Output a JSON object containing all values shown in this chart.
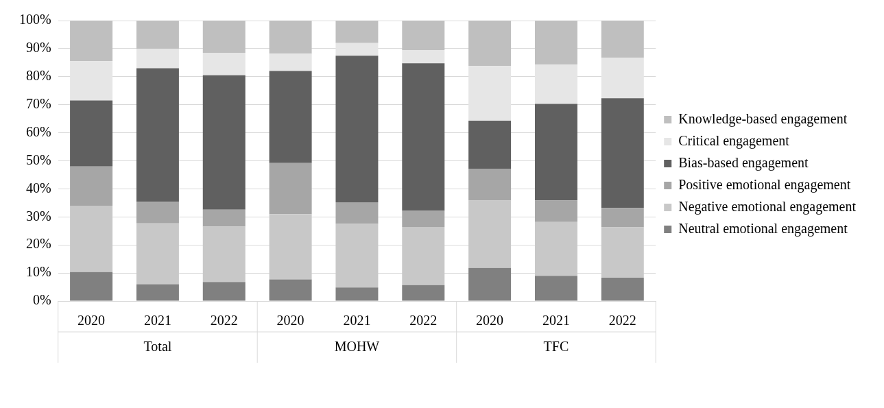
{
  "chart_data": {
    "type": "bar",
    "stacked": true,
    "categories": [
      "2020",
      "2021",
      "2022",
      "2020",
      "2021",
      "2022",
      "2020",
      "2021",
      "2022"
    ],
    "series": [
      {
        "name": "Neutral emotional engagement",
        "color": "#808080",
        "values": [
          10.3,
          6,
          6.8,
          7.7,
          4.8,
          5.7,
          11.8,
          9,
          8.3
        ]
      },
      {
        "name": "Negative emotional engagement",
        "color": "#c8c8c8",
        "values": [
          23.7,
          21.7,
          19.7,
          23.3,
          22.7,
          20.7,
          24,
          19.2,
          18
        ]
      },
      {
        "name": "Positive emotional engagement",
        "color": "#a6a6a6",
        "values": [
          14,
          7.7,
          6.1,
          18.2,
          7.7,
          5.8,
          11.4,
          7.7,
          6.9
        ]
      },
      {
        "name": "Bias-based engagement",
        "color": "#606060",
        "values": [
          23.5,
          47.6,
          47.9,
          32.8,
          52.3,
          52.6,
          17.1,
          34.4,
          39.1
        ]
      },
      {
        "name": "Critical engagement",
        "color": "#e6e6e6",
        "values": [
          14,
          7,
          8,
          6.2,
          4.5,
          4.7,
          19.5,
          14,
          14.5
        ]
      },
      {
        "name": "Knowledge-based engagement",
        "color": "#bfbfbf",
        "values": [
          14.5,
          10,
          11.5,
          11.8,
          8,
          10.5,
          16.2,
          15.7,
          13.2
        ]
      }
    ],
    "annotations": [
      "Total",
      "MOHW",
      "TFC"
    ],
    "ylim": [
      0,
      100
    ],
    "yticks": [
      {
        "value": 0,
        "label": "0%"
      },
      {
        "value": 10,
        "label": "10%"
      },
      {
        "value": 20,
        "label": "20%"
      },
      {
        "value": 30,
        "label": "30%"
      },
      {
        "value": 40,
        "label": "40%"
      },
      {
        "value": 50,
        "label": "50%"
      },
      {
        "value": 60,
        "label": "60%"
      },
      {
        "value": 70,
        "label": "70%"
      },
      {
        "value": 80,
        "label": "80%"
      },
      {
        "value": 90,
        "label": "90%"
      },
      {
        "value": 100,
        "label": "100%"
      }
    ],
    "grid": "y",
    "legend": "right"
  }
}
